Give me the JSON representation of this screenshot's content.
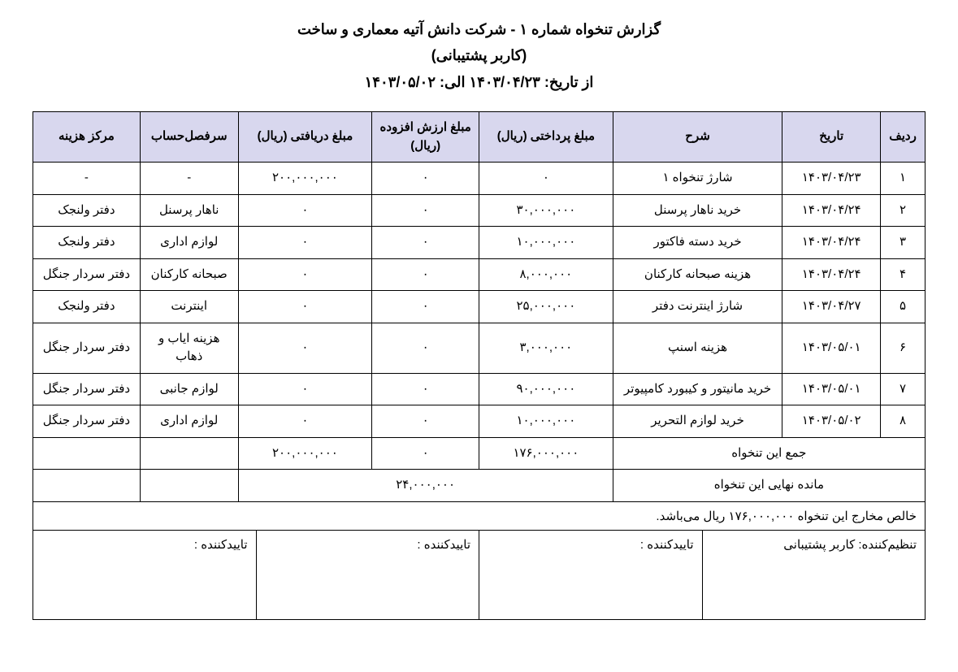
{
  "header": {
    "line1": "گزارش تنخواه شماره ۱ - شرکت دانش آتیه معماری و ساخت",
    "line2": "(کاربر پشتیبانی)",
    "line3": "از تاریخ: ۱۴۰۳/۰۴/۲۳ الی: ۱۴۰۳/۰۵/۰۲"
  },
  "columns": {
    "row": "ردیف",
    "date": "تاریخ",
    "desc": "شرح",
    "paid": "مبلغ پرداختی (ریال)",
    "vat": "مبلغ ارزش افزوده (ریال)",
    "received": "مبلغ دریافتی (ریال)",
    "account": "سرفصل‌حساب",
    "cost_center": "مرکز هزینه"
  },
  "rows": [
    {
      "n": "۱",
      "date": "۱۴۰۳/۰۴/۲۳",
      "desc": "شارژ تنخواه ۱",
      "paid": "۰",
      "vat": "۰",
      "recv": "۲۰۰,۰۰۰,۰۰۰",
      "acct": "-",
      "cost": "-"
    },
    {
      "n": "۲",
      "date": "۱۴۰۳/۰۴/۲۴",
      "desc": "خرید ناهار پرسنل",
      "paid": "۳۰,۰۰۰,۰۰۰",
      "vat": "۰",
      "recv": "۰",
      "acct": "ناهار پرسنل",
      "cost": "دفتر ولنجک"
    },
    {
      "n": "۳",
      "date": "۱۴۰۳/۰۴/۲۴",
      "desc": "خرید دسته فاکتور",
      "paid": "۱۰,۰۰۰,۰۰۰",
      "vat": "۰",
      "recv": "۰",
      "acct": "لوازم اداری",
      "cost": "دفتر ولنجک"
    },
    {
      "n": "۴",
      "date": "۱۴۰۳/۰۴/۲۴",
      "desc": "هزینه صبحانه کارکنان",
      "paid": "۸,۰۰۰,۰۰۰",
      "vat": "۰",
      "recv": "۰",
      "acct": "صبحانه کارکنان",
      "cost": "دفتر سردار جنگل"
    },
    {
      "n": "۵",
      "date": "۱۴۰۳/۰۴/۲۷",
      "desc": "شارژ اینترنت دفتر",
      "paid": "۲۵,۰۰۰,۰۰۰",
      "vat": "۰",
      "recv": "۰",
      "acct": "اینترنت",
      "cost": "دفتر ولنجک"
    },
    {
      "n": "۶",
      "date": "۱۴۰۳/۰۵/۰۱",
      "desc": "هزینه اسنپ",
      "paid": "۳,۰۰۰,۰۰۰",
      "vat": "۰",
      "recv": "۰",
      "acct": "هزینه ایاب و ذهاب",
      "cost": "دفتر سردار جنگل"
    },
    {
      "n": "۷",
      "date": "۱۴۰۳/۰۵/۰۱",
      "desc": "خرید مانیتور و کیبورد کامپیوتر",
      "paid": "۹۰,۰۰۰,۰۰۰",
      "vat": "۰",
      "recv": "۰",
      "acct": "لوازم جانبی",
      "cost": "دفتر سردار جنگل"
    },
    {
      "n": "۸",
      "date": "۱۴۰۳/۰۵/۰۲",
      "desc": "خرید لوازم التحریر",
      "paid": "۱۰,۰۰۰,۰۰۰",
      "vat": "۰",
      "recv": "۰",
      "acct": "لوازم اداری",
      "cost": "دفتر سردار جنگل"
    }
  ],
  "totals": {
    "sum_label": "جمع این تنخواه",
    "sum_paid": "۱۷۶,۰۰۰,۰۰۰",
    "sum_vat": "۰",
    "sum_recv": "۲۰۰,۰۰۰,۰۰۰",
    "balance_label": "مانده نهایی این تنخواه",
    "balance_value": "۲۴,۰۰۰,۰۰۰",
    "net_note": "خالص مخارج این تنخواه ۱۷۶,۰۰۰,۰۰۰ ریال می‌باشد."
  },
  "signatures": {
    "preparer": "تنظیم‌کننده: کاربر پشتیبانی",
    "approver1": "تاییدکننده :",
    "approver2": "تاییدکننده :",
    "approver3": "تاییدکننده :"
  },
  "style": {
    "header_bg": "#d8d7ee",
    "border_color": "#000000",
    "background": "#ffffff",
    "font_size": 15,
    "header_font_size": 18
  }
}
